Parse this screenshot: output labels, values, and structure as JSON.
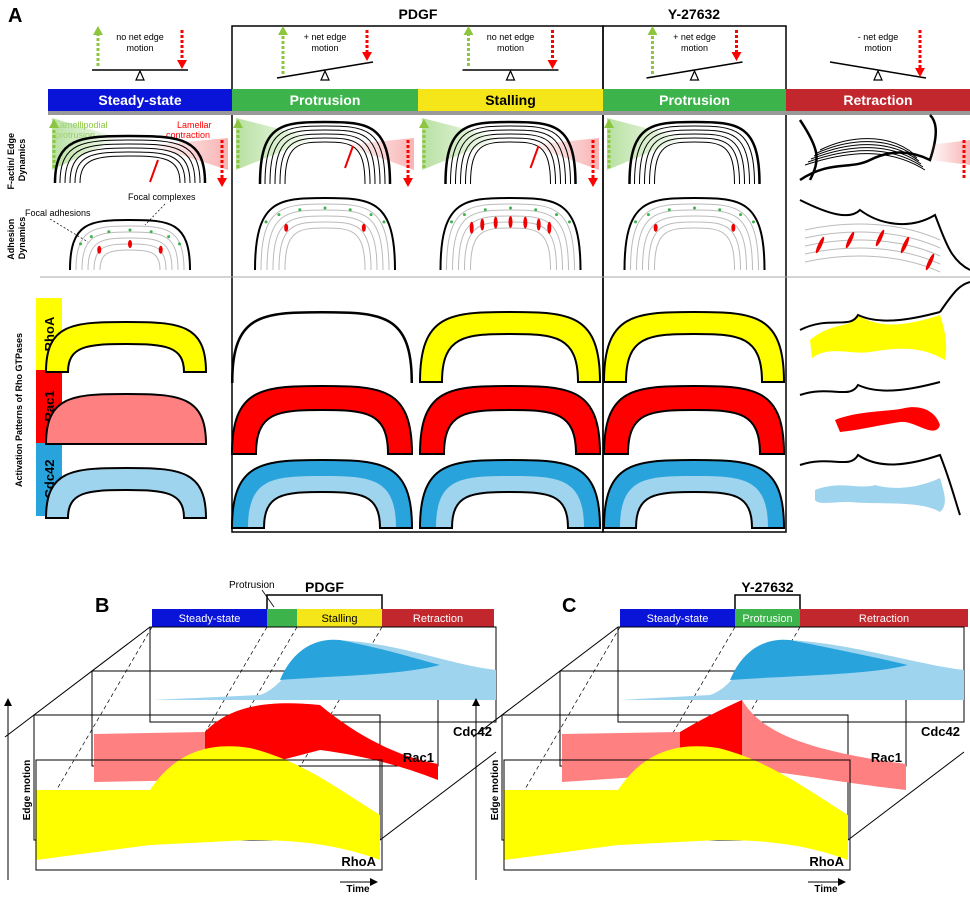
{
  "panel_a": {
    "letter": "A",
    "treatments": {
      "pdgf": "PDGF",
      "y27632": "Y-27632"
    },
    "stages": [
      {
        "label": "Steady-state",
        "color": "#0a14d8"
      },
      {
        "label": "Protrusion",
        "color": "#3cb44b"
      },
      {
        "label": "Stalling",
        "color": "#f5e61a"
      },
      {
        "label": "Protrusion",
        "color": "#3cb44b"
      },
      {
        "label": "Retraction",
        "color": "#c1272d"
      }
    ],
    "balances": [
      "no net edge motion",
      "+ net edge motion",
      "no net edge motion",
      "+ net edge motion",
      "- net edge motion"
    ],
    "row_labels": {
      "factin": "F-actin/ Edge Dynamics",
      "adhesion": "Adhesion Dynamics",
      "gtpases": "Activation Patterns of Rho GTPases"
    },
    "annotations": {
      "lamellipodial": "Lamellipodial protrusion",
      "lamellar": "Lamellar contraction",
      "focal_adhesions": "Focal adhesions",
      "focal_complexes": "Focal complexes"
    },
    "gtpases": [
      {
        "name": "RhoA",
        "color": "#ffff00"
      },
      {
        "name": "Rac1",
        "color": "#ff0000"
      },
      {
        "name": "Cdc42",
        "color": "#29a3dc"
      }
    ]
  },
  "panel_b": {
    "letter": "B",
    "treatment": "PDGF",
    "callout": "Protrusion",
    "stages": [
      "Steady-state",
      "",
      "Stalling",
      "Retraction"
    ],
    "layers": [
      "Cdc42",
      "Rac1",
      "RhoA"
    ],
    "y_axis": "Edge motion",
    "x_axis": "Time"
  },
  "panel_c": {
    "letter": "C",
    "treatment": "Y-27632",
    "stages": [
      "Steady-state",
      "Protrusion",
      "Retraction"
    ],
    "layers": [
      "Cdc42",
      "Rac1",
      "RhoA"
    ],
    "y_axis": "Edge motion",
    "x_axis": "Time"
  },
  "colors": {
    "yellow": "#ffff00",
    "red": "#ff0000",
    "pink": "#ff8080",
    "blue_dark": "#29a3dc",
    "blue_light": "#9fd4ee",
    "green_arrow": "#8cc63f",
    "red_arrow": "#ff0000"
  }
}
